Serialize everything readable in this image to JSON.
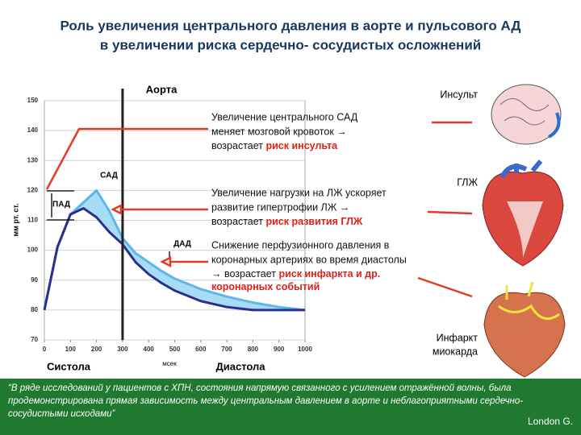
{
  "title": [
    "Роль увеличения центрального давления в аорте и пульсового АД",
    "в увеличении риска сердечно- сосудистых осложнений"
  ],
  "chart_data": {
    "type": "line",
    "title": "Аорта",
    "x_label": "мсек",
    "y_label": "мм рт. ст.",
    "x": [
      0,
      50,
      100,
      150,
      200,
      250,
      300,
      350,
      400,
      450,
      500,
      600,
      700,
      800,
      900,
      1000
    ],
    "series": [
      {
        "color": "#5bb8e8",
        "values": [
          80,
          101,
          112,
          116,
          120,
          113,
          104,
          99,
          96,
          93,
          90.5,
          87,
          84.5,
          82.5,
          81,
          80
        ]
      },
      {
        "color": "#2b2f8f",
        "values": [
          80,
          101,
          112,
          114,
          111,
          106,
          102,
          96,
          92,
          89,
          86.5,
          83,
          81,
          80,
          80,
          80
        ]
      }
    ],
    "fill_between": "#a8dcf4",
    "xlim": [
      0,
      1000
    ],
    "xticks": [
      0,
      100,
      200,
      300,
      400,
      500,
      600,
      700,
      800,
      900,
      1000
    ],
    "ylim": [
      70,
      150
    ],
    "yticks": [
      70,
      80,
      90,
      100,
      110,
      120,
      130,
      140,
      150
    ],
    "grid": true,
    "phase_boundary": 300,
    "phase_labels": [
      "Систола",
      "Диастола"
    ],
    "pressure_labels": [
      "САД",
      "ПАД",
      "ДАД"
    ]
  },
  "notes": [
    {
      "lines": [
        "Увеличение центрального САД",
        "меняет мозговой кровоток →"
      ],
      "tail": "возрастает ",
      "highlight": [
        "риск инсульта"
      ]
    },
    {
      "lines": [
        "Увеличение нагрузки на ЛЖ ускоряет",
        "развитие гипертрофии ЛЖ →"
      ],
      "tail": "возрастает ",
      "highlight": [
        "риск развития ГЛЖ"
      ]
    },
    {
      "lines": [
        "Снижение перфузионного давления в",
        "коронарных артериях во время диастолы"
      ],
      "tail": "→ возрастает ",
      "highlight": [
        "риск инфаркта и др.",
        "коронарных событий"
      ]
    }
  ],
  "organs": [
    "Инсульт",
    "ГЛЖ",
    "Инфаркт",
    "миокарда"
  ],
  "footer": {
    "quote": [
      "“В ряде исследований у пациентов с ХПН, состояния напрямую связанного с усилением отражённой волны, была",
      "продемонстрирована прямая зависимость между центральным давлением в аорте и неблагоприятными сердечно-",
      "сосудистыми исходами”"
    ],
    "source": "London G."
  }
}
